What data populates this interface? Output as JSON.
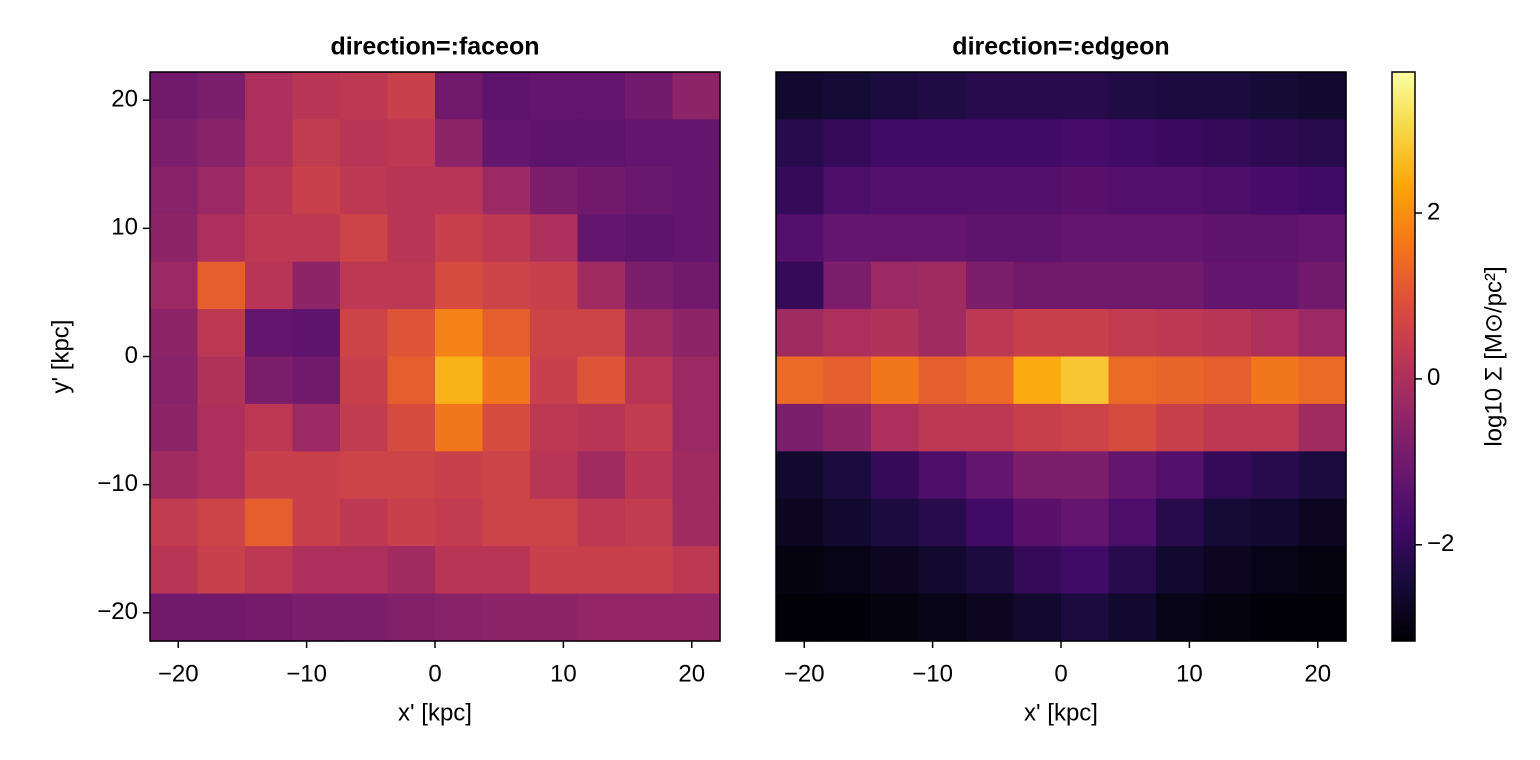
{
  "chart_data": [
    {
      "type": "heatmap",
      "title": "direction=:faceon",
      "xlabel": "x' [kpc]",
      "ylabel": "y' [kpc]",
      "xlim": [
        -22.2,
        22.2
      ],
      "ylim": [
        -22.2,
        22.2
      ],
      "xticks": [
        {
          "value": -20,
          "label": "−20"
        },
        {
          "value": -10,
          "label": "−10"
        },
        0,
        10,
        20
      ],
      "yticks": [
        {
          "value": -20,
          "label": "−20"
        },
        {
          "value": -10,
          "label": "−10"
        },
        0,
        10,
        20
      ],
      "z": [
        [
          -1,
          -0.8,
          0,
          0.2,
          0.3,
          0.5,
          -1,
          -1.3,
          -1.2,
          -1.2,
          -1.0,
          -0.5
        ],
        [
          -0.8,
          -0.6,
          0,
          0.4,
          0.2,
          0.3,
          -0.5,
          -1.2,
          -1.3,
          -1.3,
          -1.2,
          -1.2
        ],
        [
          -0.6,
          -0.3,
          0.2,
          0.5,
          0.3,
          0.2,
          0.2,
          -0.3,
          -0.8,
          -1.0,
          -1.1,
          -1.2
        ],
        [
          -0.5,
          0,
          0.3,
          0.3,
          0.6,
          0.2,
          0.5,
          0.3,
          0,
          -1.2,
          -1.3,
          -1.2
        ],
        [
          -0.3,
          1.2,
          0.2,
          -0.5,
          0.3,
          0.3,
          0.8,
          0.6,
          0.5,
          -0.2,
          -0.8,
          -1.0
        ],
        [
          -0.5,
          0.3,
          -1.2,
          -1.3,
          0.6,
          1.0,
          1.8,
          1.2,
          0.6,
          0.6,
          -0.2,
          -0.5
        ],
        [
          -0.6,
          0.1,
          -0.8,
          -1.0,
          0.5,
          1.2,
          2.5,
          1.6,
          0.5,
          1.0,
          0.2,
          -0.3
        ],
        [
          -0.5,
          0.0,
          0.3,
          -0.3,
          0.4,
          0.8,
          1.6,
          0.8,
          0.3,
          0.2,
          0.4,
          -0.3
        ],
        [
          -0.2,
          0.0,
          0.5,
          0.5,
          0.6,
          0.6,
          0.5,
          0.6,
          0.2,
          -0.2,
          0.2,
          -0.2
        ],
        [
          0.4,
          0.6,
          1.2,
          0.5,
          0.3,
          0.5,
          0.4,
          0.6,
          0.6,
          0.3,
          0.4,
          -0.2
        ],
        [
          0.2,
          0.5,
          0.3,
          0.0,
          0,
          -0.2,
          0.2,
          0.2,
          0.5,
          0.5,
          0.5,
          0.3
        ],
        [
          -1.0,
          -1.0,
          -0.9,
          -0.8,
          -0.8,
          -0.7,
          -0.6,
          -0.5,
          -0.5,
          -0.4,
          -0.4,
          -0.4
        ]
      ]
    },
    {
      "type": "heatmap",
      "title": "direction=:edgeon",
      "xlabel": "x' [kpc]",
      "xlim": [
        -22.2,
        22.2
      ],
      "ylim": [
        -22.2,
        22.2
      ],
      "xticks": [
        {
          "value": -20,
          "label": "−20"
        },
        {
          "value": -10,
          "label": "−10"
        },
        0,
        10,
        20
      ],
      "z": [
        [
          -2.6,
          -2.5,
          -2.4,
          -2.3,
          -2.2,
          -2.2,
          -2.2,
          -2.3,
          -2.4,
          -2.4,
          -2.5,
          -2.6
        ],
        [
          -2.2,
          -2.0,
          -1.8,
          -1.8,
          -1.8,
          -1.8,
          -1.7,
          -1.8,
          -1.9,
          -2.0,
          -2.1,
          -2.2
        ],
        [
          -2.0,
          -1.6,
          -1.5,
          -1.5,
          -1.5,
          -1.5,
          -1.4,
          -1.5,
          -1.5,
          -1.6,
          -1.7,
          -1.8
        ],
        [
          -1.5,
          -1.2,
          -1.2,
          -1.2,
          -1.3,
          -1.3,
          -1.2,
          -1.2,
          -1.2,
          -1.3,
          -1.3,
          -1.2
        ],
        [
          -2.0,
          -0.8,
          -0.3,
          -0.2,
          -0.8,
          -1.0,
          -1.0,
          -1.0,
          -1.0,
          -1.2,
          -1.2,
          -1.0
        ],
        [
          -0.2,
          0.0,
          0.1,
          -0.2,
          0.3,
          0.5,
          0.5,
          0.4,
          0.3,
          0.2,
          0.0,
          -0.3
        ],
        [
          1.4,
          1.2,
          1.6,
          1.2,
          1.4,
          2.4,
          2.8,
          1.4,
          1.3,
          1.2,
          1.6,
          1.4
        ],
        [
          -0.8,
          -0.5,
          0.0,
          0.3,
          0.3,
          0.5,
          0.6,
          0.8,
          0.5,
          0.3,
          0.3,
          -0.2
        ],
        [
          -2.6,
          -2.4,
          -2.0,
          -1.6,
          -1.2,
          -0.8,
          -0.8,
          -1.2,
          -1.5,
          -2.0,
          -2.2,
          -2.4
        ],
        [
          -2.8,
          -2.6,
          -2.4,
          -2.2,
          -1.8,
          -1.4,
          -1.2,
          -1.6,
          -2.2,
          -2.5,
          -2.6,
          -2.8
        ],
        [
          -3.0,
          -2.9,
          -2.8,
          -2.6,
          -2.4,
          -2.0,
          -1.8,
          -2.2,
          -2.6,
          -2.8,
          -2.9,
          -3.0
        ],
        [
          -3.1,
          -3.1,
          -3.0,
          -2.9,
          -2.8,
          -2.6,
          -2.4,
          -2.6,
          -2.9,
          -3.0,
          -3.1,
          -3.1
        ]
      ]
    }
  ],
  "colorbar": {
    "label": "log10 Σ  [M⊙/pc²]",
    "colormap": "inferno",
    "clim": [
      -3.16,
      3.7
    ],
    "ticks": [
      {
        "value": -2,
        "label": "−2"
      },
      0,
      2
    ]
  }
}
